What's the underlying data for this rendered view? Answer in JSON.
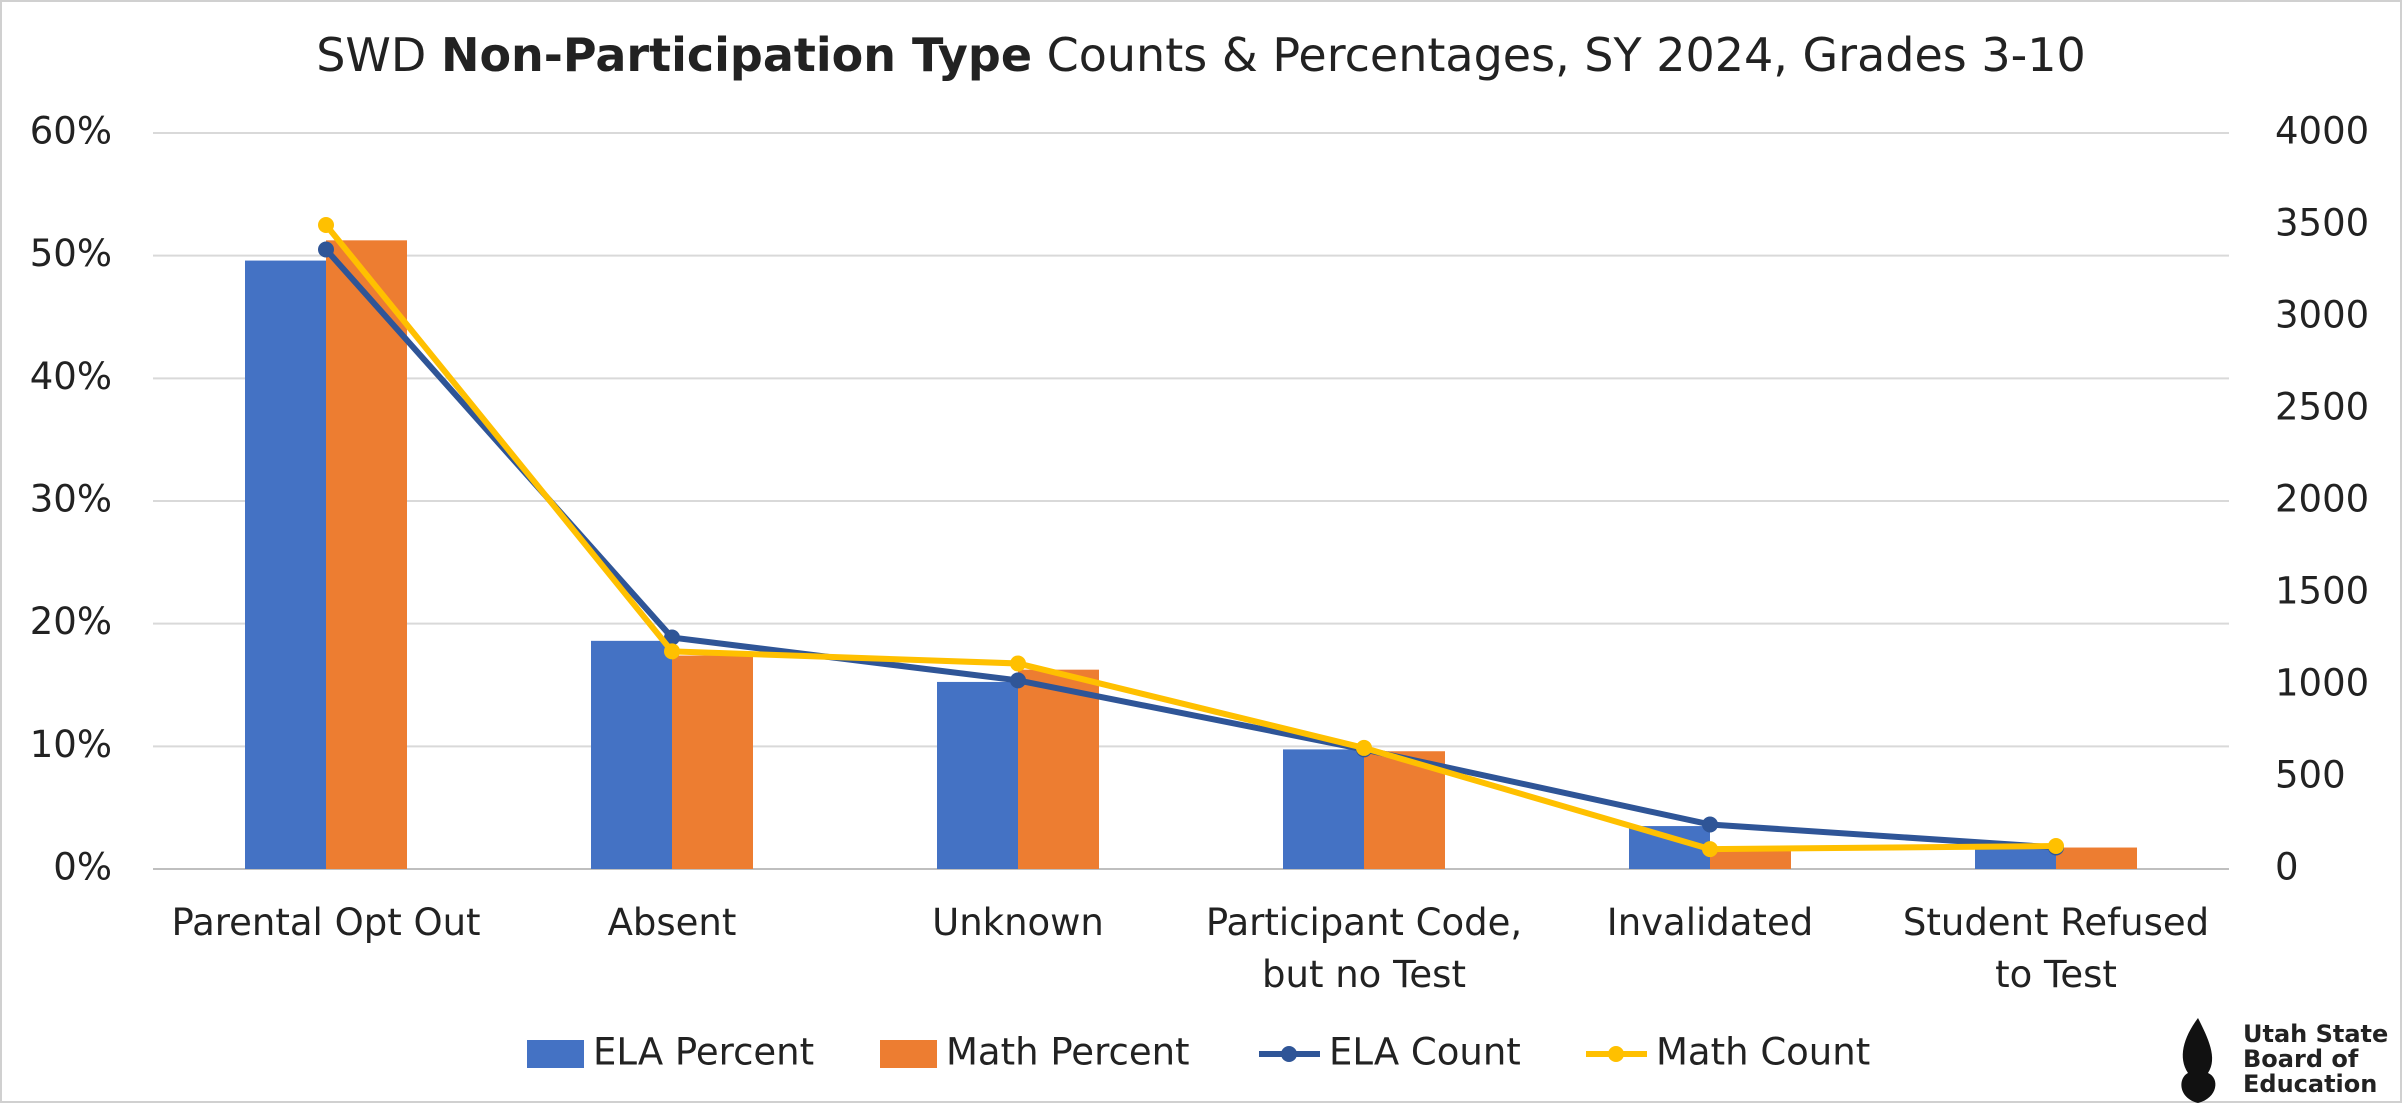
{
  "chart_data": {
    "type": "bar_line",
    "title_parts": [
      {
        "text": "SWD ",
        "bold": false
      },
      {
        "text": "Non-Participation Type",
        "bold": true
      },
      {
        "text": " Counts & Percentages, SY 2024, Grades 3-10",
        "bold": false
      }
    ],
    "categories": [
      "Parental Opt Out",
      "Absent",
      "Unknown",
      "Participant Code,\nbut no Test",
      "Invalidated",
      "Student Refused\nto Test"
    ],
    "series": [
      {
        "name": "ELA Percent",
        "type": "bar",
        "color": "#4472c4",
        "values": [
          49.6,
          18.6,
          15.25,
          9.75,
          3.5,
          2.0
        ]
      },
      {
        "name": "Math Percent",
        "type": "bar",
        "color": "#ed7d31",
        "values": [
          51.25,
          17.4,
          16.25,
          9.6,
          1.75,
          1.75
        ]
      },
      {
        "name": "ELA Count",
        "type": "line",
        "axis": "y2",
        "color": "#2f5597",
        "values": [
          3367,
          1258,
          1025,
          650,
          242,
          117
        ]
      },
      {
        "name": "Math Count",
        "type": "line",
        "axis": "y2",
        "color": "#ffc000",
        "values": [
          3500,
          1183,
          1117,
          658,
          108,
          125
        ]
      }
    ],
    "ylim": [
      0,
      60
    ],
    "yticks": [
      {
        "value": 0,
        "label": "0%"
      },
      {
        "value": 10,
        "label": "10%"
      },
      {
        "value": 20,
        "label": "20%"
      },
      {
        "value": 30,
        "label": "30%"
      },
      {
        "value": 40,
        "label": "40%"
      },
      {
        "value": 50,
        "label": "50%"
      },
      {
        "value": 60,
        "label": "60%"
      }
    ],
    "y2lim": [
      0,
      4000
    ],
    "y2ticks": [
      0,
      500,
      1000,
      1500,
      2000,
      2500,
      3000,
      3500,
      4000
    ],
    "grid": true,
    "legend": "bottom",
    "logo": [
      "Utah State",
      "Board of",
      "Education"
    ]
  }
}
